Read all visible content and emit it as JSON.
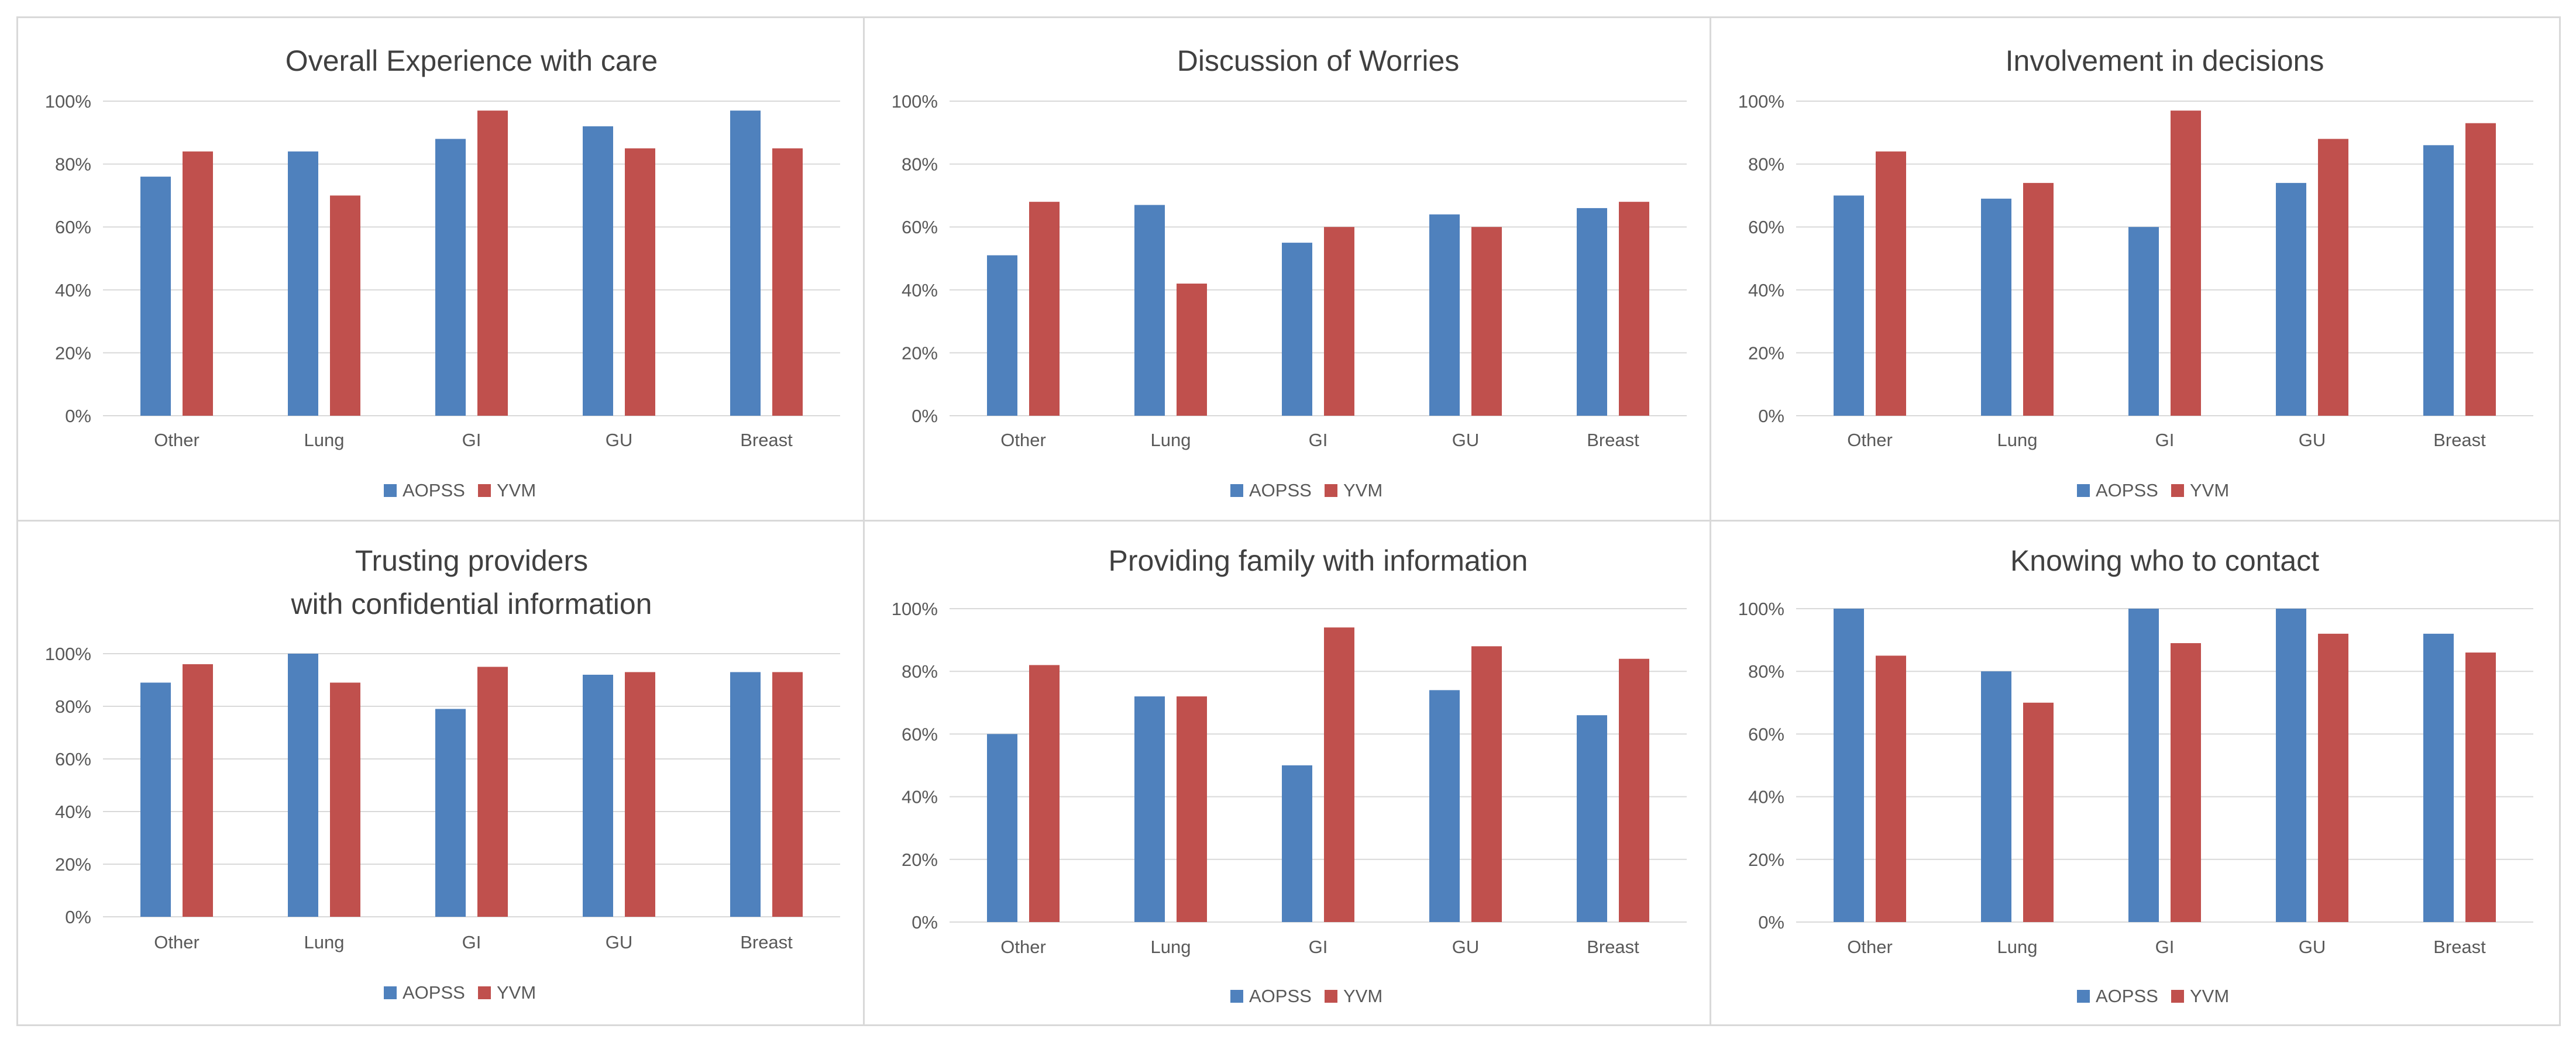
{
  "colors": {
    "AOPSS": "#4f81bd",
    "YVM": "#c0504d",
    "gridline": "#d9d9d9",
    "text": "#595959",
    "title": "#404040"
  },
  "chart_data": [
    {
      "type": "bar",
      "title": [
        "Overall Experience with care"
      ],
      "categories": [
        "Other",
        "Lung",
        "GI",
        "GU",
        "Breast"
      ],
      "yticks": [
        "0%",
        "20%",
        "40%",
        "60%",
        "80%",
        "100%"
      ],
      "ylim": [
        0,
        100
      ],
      "series": [
        {
          "name": "AOPSS",
          "values": [
            76,
            84,
            88,
            92,
            97
          ]
        },
        {
          "name": "YVM",
          "values": [
            84,
            70,
            97,
            85,
            85
          ]
        }
      ]
    },
    {
      "type": "bar",
      "title": [
        "Discussion of Worries"
      ],
      "categories": [
        "Other",
        "Lung",
        "GI",
        "GU",
        "Breast"
      ],
      "yticks": [
        "0%",
        "20%",
        "40%",
        "60%",
        "80%",
        "100%"
      ],
      "ylim": [
        0,
        100
      ],
      "series": [
        {
          "name": "AOPSS",
          "values": [
            51,
            67,
            55,
            64,
            66
          ]
        },
        {
          "name": "YVM",
          "values": [
            68,
            42,
            60,
            60,
            68
          ]
        }
      ]
    },
    {
      "type": "bar",
      "title": [
        "Involvement in decisions"
      ],
      "categories": [
        "Other",
        "Lung",
        "GI",
        "GU",
        "Breast"
      ],
      "yticks": [
        "0%",
        "20%",
        "40%",
        "60%",
        "80%",
        "100%"
      ],
      "ylim": [
        0,
        100
      ],
      "series": [
        {
          "name": "AOPSS",
          "values": [
            70,
            69,
            60,
            74,
            86
          ]
        },
        {
          "name": "YVM",
          "values": [
            84,
            74,
            97,
            88,
            93
          ]
        }
      ]
    },
    {
      "type": "bar",
      "title": [
        "Trusting providers",
        "with confidential information"
      ],
      "categories": [
        "Other",
        "Lung",
        "GI",
        "GU",
        "Breast"
      ],
      "yticks": [
        "0%",
        "20%",
        "40%",
        "60%",
        "80%",
        "100%"
      ],
      "ylim": [
        0,
        100
      ],
      "series": [
        {
          "name": "AOPSS",
          "values": [
            89,
            100,
            79,
            92,
            93
          ]
        },
        {
          "name": "YVM",
          "values": [
            96,
            89,
            95,
            93,
            93
          ]
        }
      ]
    },
    {
      "type": "bar",
      "title": [
        "Providing family with information"
      ],
      "categories": [
        "Other",
        "Lung",
        "GI",
        "GU",
        "Breast"
      ],
      "yticks": [
        "0%",
        "20%",
        "40%",
        "60%",
        "80%",
        "100%"
      ],
      "ylim": [
        0,
        100
      ],
      "series": [
        {
          "name": "AOPSS",
          "values": [
            60,
            72,
            50,
            74,
            66
          ]
        },
        {
          "name": "YVM",
          "values": [
            82,
            72,
            94,
            88,
            84
          ]
        }
      ]
    },
    {
      "type": "bar",
      "title": [
        "Knowing who to contact"
      ],
      "categories": [
        "Other",
        "Lung",
        "GI",
        "GU",
        "Breast"
      ],
      "yticks": [
        "0%",
        "20%",
        "40%",
        "60%",
        "80%",
        "100%"
      ],
      "ylim": [
        0,
        100
      ],
      "series": [
        {
          "name": "AOPSS",
          "values": [
            100,
            80,
            100,
            100,
            92
          ]
        },
        {
          "name": "YVM",
          "values": [
            85,
            70,
            89,
            92,
            86
          ]
        }
      ]
    }
  ]
}
